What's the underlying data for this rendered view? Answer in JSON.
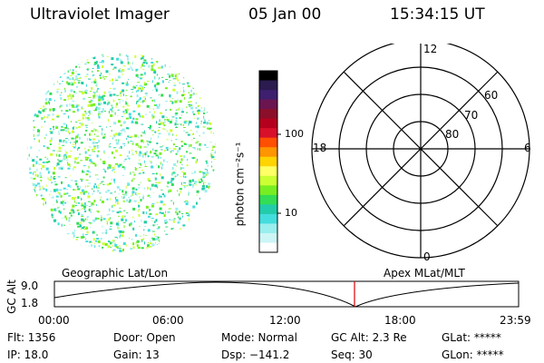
{
  "header": {
    "title": "Ultraviolet Imager",
    "date": "05 Jan 00",
    "time": "15:34:15 UT"
  },
  "colorbar": {
    "unit_label": "photon cm⁻²s⁻¹",
    "tick_labels": [
      "100",
      "10"
    ],
    "colors": [
      "#000000",
      "#2b1b4e",
      "#3d1f6e",
      "#6a1550",
      "#8c0f2a",
      "#b4001e",
      "#d8102a",
      "#ff4f00",
      "#ff9500",
      "#ffd400",
      "#ffff66",
      "#ccff33",
      "#77ee22",
      "#33dd55",
      "#22ccaa",
      "#44dddd",
      "#99eeee",
      "#ccf5f5",
      "#ffffff"
    ]
  },
  "polar_plot": {
    "top_label": "12",
    "left_label": "18",
    "right_label": "6",
    "bottom_label": "0",
    "lat_labels": [
      "60",
      "70",
      "80"
    ]
  },
  "alt_plot": {
    "left_label": "Geographic Lat/Lon",
    "right_label": "Apex MLat/MLT",
    "y_axis_label": "GC Alt",
    "y_ticks": [
      "9.0",
      "1.8"
    ],
    "x_ticks": [
      "00:00",
      "06:00",
      "12:00",
      "18:00",
      "23:59"
    ],
    "marker_color": "#dd0000"
  },
  "status": {
    "row1": [
      "Flt: 1356",
      "Door: Open",
      "Mode: Normal",
      "GC Alt: 2.3 Re",
      "GLat: *****"
    ],
    "row2": [
      "IP: 18.0",
      "Gain: 13",
      "Dsp: −141.2",
      "Seq: 30",
      "GLon: *****"
    ]
  },
  "image_disk": {
    "colors": [
      "#33dd55",
      "#77ee22",
      "#44dddd",
      "#22ccaa",
      "#99eeee",
      "#ccff33"
    ]
  }
}
